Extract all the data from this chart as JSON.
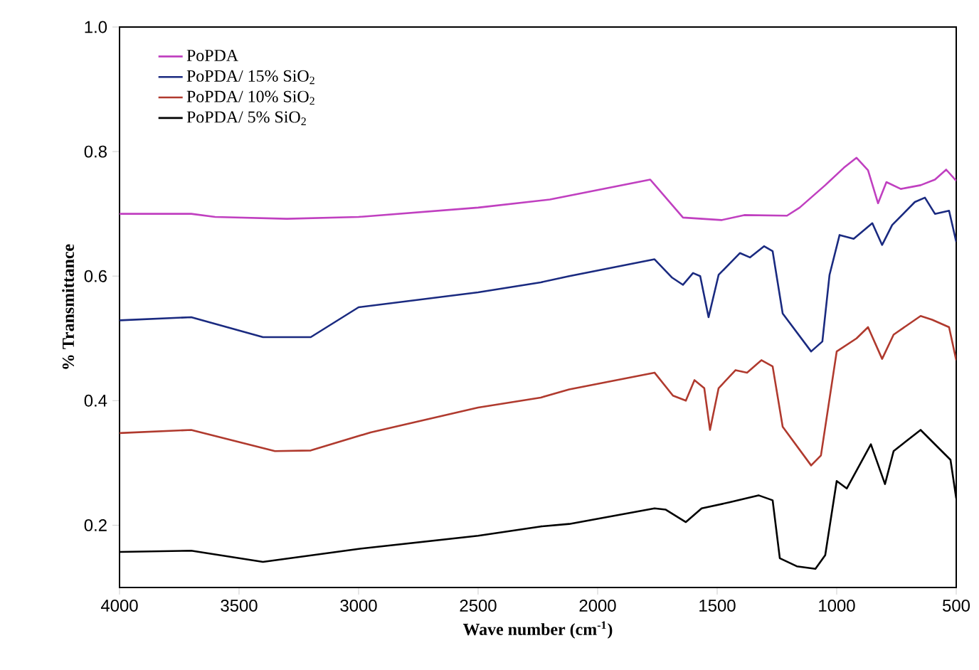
{
  "chart_data": {
    "type": "line",
    "xlabel": "Wave number (cm$^{-1}$)",
    "ylabel": "% Transmittance",
    "xlim": [
      4000,
      500
    ],
    "ylim": [
      0.1,
      1.0
    ],
    "xticks": [
      4000,
      3500,
      3000,
      2500,
      2000,
      1500,
      1000,
      500
    ],
    "yticks": [
      0.2,
      0.4,
      0.6,
      0.8,
      {
        "value": 1.0,
        "label": "1.0"
      }
    ],
    "legend": "top left",
    "grid": false,
    "marker": "none",
    "line_style": "solid",
    "series": [
      {
        "name": "PoPDA",
        "color": "#c040c0",
        "x": [
          4000,
          3700,
          3600,
          3300,
          3000,
          2500,
          2200,
          1780,
          1643,
          1482,
          1387,
          1208,
          1155,
          1048,
          970,
          917,
          869,
          827,
          792,
          732,
          649,
          589,
          542,
          500
        ],
        "values": [
          0.7,
          0.7,
          0.695,
          0.692,
          0.695,
          0.71,
          0.723,
          0.755,
          0.694,
          0.69,
          0.698,
          0.697,
          0.71,
          0.746,
          0.774,
          0.79,
          0.77,
          0.717,
          0.751,
          0.74,
          0.746,
          0.755,
          0.771,
          0.753
        ]
      },
      {
        "name": "PoPDA/ 15% SiO$_{2}$",
        "color": "#1a2a80",
        "x": [
          4000,
          3700,
          3400,
          3200,
          3000,
          2500,
          2238,
          2119,
          1762,
          1690,
          1643,
          1601,
          1571,
          1536,
          1494,
          1405,
          1363,
          1304,
          1268,
          1226,
          1107,
          1060,
          1030,
          988,
          929,
          851,
          810,
          768,
          673,
          631,
          589,
          530,
          500
        ],
        "values": [
          0.529,
          0.534,
          0.502,
          0.502,
          0.55,
          0.574,
          0.59,
          0.6,
          0.627,
          0.598,
          0.586,
          0.605,
          0.6,
          0.534,
          0.602,
          0.637,
          0.63,
          0.648,
          0.64,
          0.54,
          0.479,
          0.495,
          0.602,
          0.666,
          0.66,
          0.685,
          0.65,
          0.682,
          0.719,
          0.726,
          0.7,
          0.705,
          0.655
        ]
      },
      {
        "name": "PoPDA/ 10% SiO$_{2}$",
        "color": "#b03a2e",
        "x": [
          4000,
          3700,
          3350,
          3200,
          2950,
          2500,
          2238,
          2119,
          1762,
          1685,
          1631,
          1595,
          1554,
          1530,
          1494,
          1423,
          1375,
          1315,
          1268,
          1226,
          1107,
          1066,
          1000,
          917,
          869,
          810,
          762,
          649,
          601,
          530,
          500
        ],
        "values": [
          0.348,
          0.353,
          0.319,
          0.32,
          0.349,
          0.389,
          0.405,
          0.418,
          0.445,
          0.408,
          0.4,
          0.433,
          0.42,
          0.353,
          0.42,
          0.449,
          0.445,
          0.465,
          0.455,
          0.358,
          0.296,
          0.312,
          0.479,
          0.5,
          0.518,
          0.467,
          0.506,
          0.536,
          0.53,
          0.518,
          0.465
        ]
      },
      {
        "name": "PoPDA/ 5% SiO$_{2}$",
        "color": "#000000",
        "x": [
          4000,
          3700,
          3400,
          3000,
          2500,
          2238,
          2119,
          1762,
          1715,
          1631,
          1565,
          1446,
          1327,
          1268,
          1238,
          1167,
          1089,
          1048,
          1000,
          958,
          857,
          798,
          762,
          649,
          571,
          524,
          500
        ],
        "values": [
          0.157,
          0.159,
          0.141,
          0.162,
          0.183,
          0.198,
          0.202,
          0.227,
          0.225,
          0.205,
          0.227,
          0.237,
          0.248,
          0.24,
          0.147,
          0.134,
          0.13,
          0.152,
          0.271,
          0.259,
          0.33,
          0.266,
          0.319,
          0.353,
          0.323,
          0.305,
          0.243
        ]
      }
    ]
  }
}
